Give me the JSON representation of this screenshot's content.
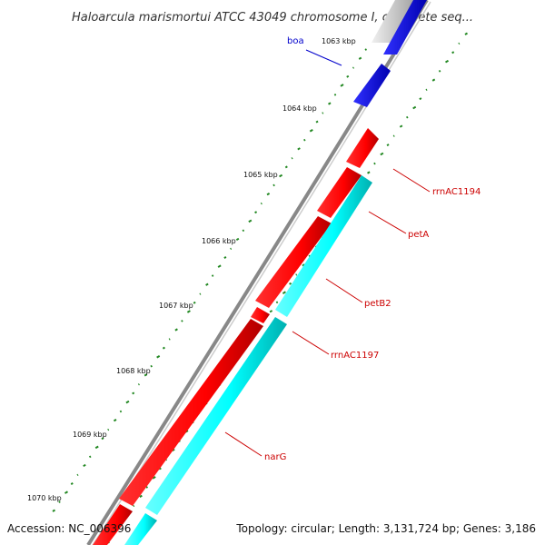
{
  "title": "Haloarcula marismortui ATCC 43049 chromosome I, complete seq...",
  "footer": {
    "accession": "Accession: NC_006396",
    "summary": "Topology: circular; Length: 3,131,724 bp; Genes: 3,186"
  },
  "ticks": [
    "1063 kbp",
    "1064 kbp",
    "1065 kbp",
    "1066 kbp",
    "1067 kbp",
    "1068 kbp",
    "1069 kbp",
    "1070 kbp"
  ],
  "genes": [
    {
      "name": "boa",
      "color": "#0000cc"
    },
    {
      "name": "rrnAC1194",
      "color": "#cc0000"
    },
    {
      "name": "petA",
      "color": "#cc0000"
    },
    {
      "name": "petB2",
      "color": "#cc0000"
    },
    {
      "name": "rrnAC1197",
      "color": "#cc0000"
    },
    {
      "name": "narG",
      "color": "#cc0000"
    }
  ],
  "colors": {
    "forward_cds": "#ff0000",
    "reverse_cds": "#00ffff",
    "other_feature": "#0000ff",
    "backbone": "#888888",
    "gc_skew": "#228822"
  }
}
